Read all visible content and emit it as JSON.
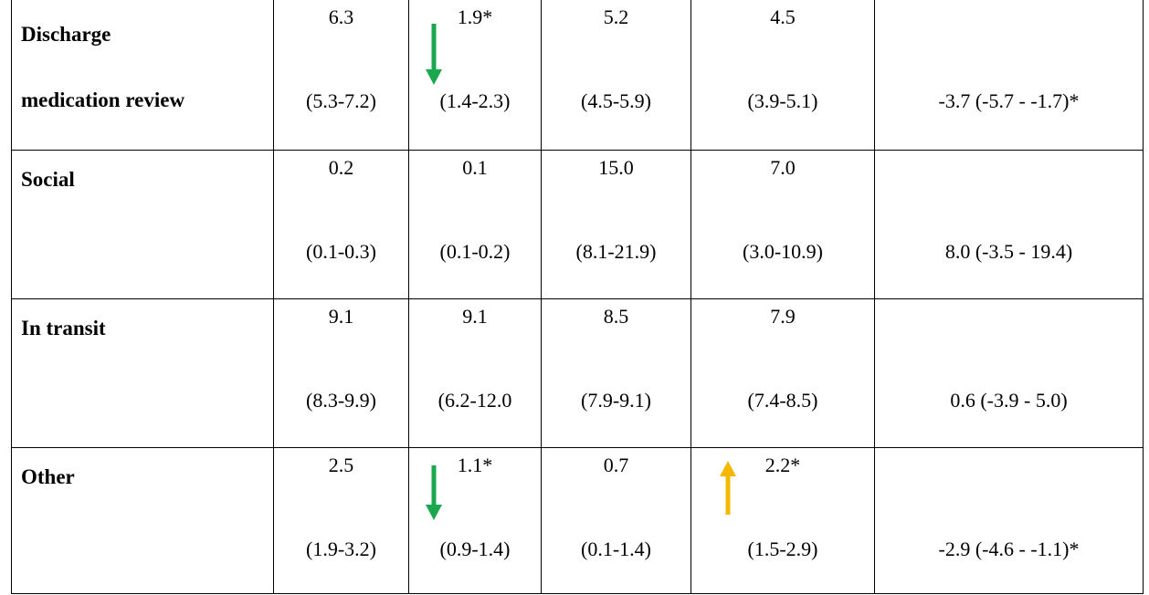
{
  "table": {
    "rows": [
      {
        "label": [
          "Discharge",
          "medication review"
        ],
        "cells": [
          [
            "6.3",
            "(5.3-7.2)"
          ],
          [
            "1.9*",
            "(1.4-2.3)"
          ],
          [
            "5.2",
            "(4.5-5.9)"
          ],
          [
            "4.5",
            "(3.9-5.1)"
          ]
        ],
        "diff": "-3.7 (-5.7 - -1.7)*"
      },
      {
        "label": [
          "Social"
        ],
        "cells": [
          [
            "0.2",
            "(0.1-0.3)"
          ],
          [
            "0.1",
            "(0.1-0.2)"
          ],
          [
            "15.0",
            "(8.1-21.9)"
          ],
          [
            "7.0",
            "(3.0-10.9)"
          ]
        ],
        "diff": "8.0 (-3.5 - 19.4)"
      },
      {
        "label": [
          "In transit"
        ],
        "cells": [
          [
            "9.1",
            "(8.3-9.9)"
          ],
          [
            "9.1",
            "(6.2-12.0"
          ],
          [
            "8.5",
            "(7.9-9.1)"
          ],
          [
            "7.9",
            "(7.4-8.5)"
          ]
        ],
        "diff": "0.6 (-3.9 - 5.0)"
      },
      {
        "label": [
          "Other"
        ],
        "cells": [
          [
            "2.5",
            "(1.9-3.2)"
          ],
          [
            "1.1*",
            "(0.9-1.4)"
          ],
          [
            "0.7",
            "(0.1-1.4)"
          ],
          [
            "2.2*",
            "(1.5-2.9)"
          ]
        ],
        "diff": "-2.9 (-4.6 - -1.1)*"
      }
    ]
  }
}
